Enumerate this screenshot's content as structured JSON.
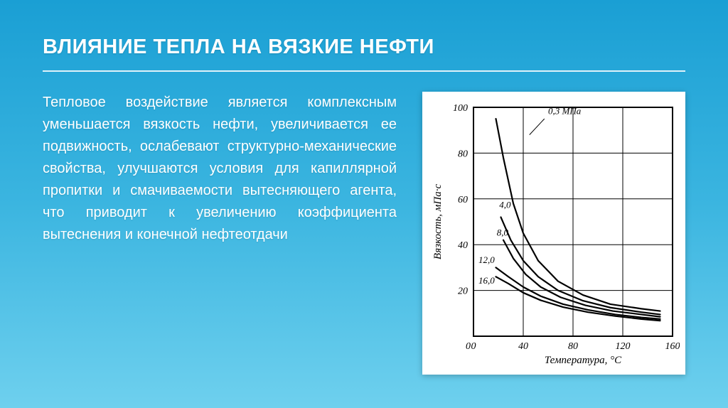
{
  "title": "ВЛИЯНИЕ ТЕПЛА НА ВЯЗКИЕ НЕФТИ",
  "body": "Тепловое воздействие является комплексным уменьшается вязкость нефти, увеличивается ее подвижность, ослабевают структурно-механические свойства, улучшаются условия для капиллярной пропитки и смачиваемости вытесняющего агента, что приводит к увеличению коэффициента вытеснения и конечной нефтеотдачи",
  "chart": {
    "type": "line",
    "background_color": "#ffffff",
    "grid_color": "#000000",
    "line_color": "#000000",
    "line_width": 2.2,
    "x_label": "Температура, °С",
    "y_label": "Вязкость, мПа·с",
    "xlim": [
      0,
      160
    ],
    "ylim": [
      0,
      100
    ],
    "x_ticks": [
      0,
      40,
      80,
      120,
      160
    ],
    "y_ticks": [
      0,
      20,
      40,
      60,
      80,
      100
    ],
    "curve_unit_label": "0,3 МПа",
    "curves": [
      {
        "label": "0,3",
        "points": [
          [
            18,
            95
          ],
          [
            24,
            78
          ],
          [
            32,
            58
          ],
          [
            40,
            45
          ],
          [
            52,
            33
          ],
          [
            68,
            24
          ],
          [
            88,
            18
          ],
          [
            110,
            14
          ],
          [
            135,
            12
          ],
          [
            150,
            11
          ]
        ]
      },
      {
        "label": "4,0",
        "points": [
          [
            22,
            52
          ],
          [
            30,
            42
          ],
          [
            40,
            33
          ],
          [
            52,
            26
          ],
          [
            68,
            20
          ],
          [
            88,
            15.5
          ],
          [
            110,
            12.5
          ],
          [
            135,
            10.5
          ],
          [
            150,
            9.5
          ]
        ]
      },
      {
        "label": "8,0",
        "points": [
          [
            24,
            42
          ],
          [
            32,
            34
          ],
          [
            42,
            27
          ],
          [
            54,
            21.5
          ],
          [
            70,
            17
          ],
          [
            90,
            13.5
          ],
          [
            112,
            11
          ],
          [
            135,
            9.5
          ],
          [
            150,
            8.5
          ]
        ]
      },
      {
        "label": "12,0",
        "points": [
          [
            18,
            30
          ],
          [
            28,
            26
          ],
          [
            40,
            21.5
          ],
          [
            54,
            17.5
          ],
          [
            72,
            14
          ],
          [
            92,
            11.5
          ],
          [
            114,
            9.5
          ],
          [
            135,
            8.2
          ],
          [
            150,
            7.5
          ]
        ]
      },
      {
        "label": "16,0",
        "points": [
          [
            18,
            26
          ],
          [
            28,
            23
          ],
          [
            40,
            19
          ],
          [
            54,
            15.7
          ],
          [
            72,
            12.7
          ],
          [
            92,
            10.5
          ],
          [
            114,
            8.8
          ],
          [
            135,
            7.5
          ],
          [
            150,
            6.8
          ]
        ]
      }
    ]
  }
}
